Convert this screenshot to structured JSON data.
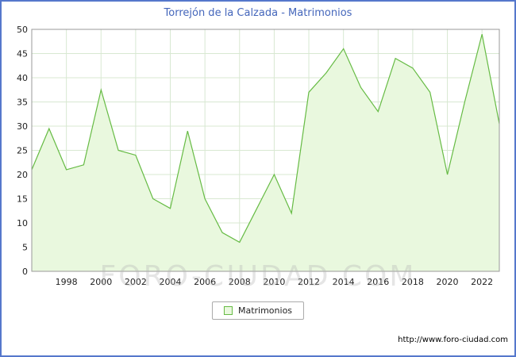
{
  "chart_data": {
    "type": "area",
    "title": "Torrejón de la Calzada - Matrimonios",
    "series_name": "Matrimonios",
    "x": [
      1996,
      1997,
      1998,
      1999,
      2000,
      2001,
      2002,
      2003,
      2004,
      2005,
      2006,
      2007,
      2008,
      2009,
      2010,
      2011,
      2012,
      2013,
      2014,
      2015,
      2016,
      2017,
      2018,
      2019,
      2020,
      2021,
      2022,
      2023
    ],
    "values": [
      21,
      29.5,
      21,
      22,
      37.5,
      25,
      24,
      15,
      13,
      29,
      15,
      8,
      6,
      13,
      20,
      12,
      37,
      41,
      46,
      38,
      33,
      44,
      42,
      37,
      20,
      35,
      49,
      30.5
    ],
    "ylim": [
      0,
      50
    ],
    "ytick_step": 5,
    "xticks": [
      1998,
      2000,
      2002,
      2004,
      2006,
      2008,
      2010,
      2012,
      2014,
      2016,
      2018,
      2020,
      2022
    ],
    "grid": true,
    "legend_position": "bottom-center",
    "line_color": "#66bb44",
    "fill_color": "#e9f8de",
    "grid_color": "#d8e8d2",
    "axis_color": "#999999"
  },
  "header": {
    "title_color": "#4466bb"
  },
  "legend": {
    "label": "Matrimonios"
  },
  "watermark": {
    "text": "FORO-CIUDAD.COM"
  },
  "footer": {
    "url": "http://www.foro-ciudad.com"
  },
  "frame": {
    "border_color": "#5577cc"
  }
}
